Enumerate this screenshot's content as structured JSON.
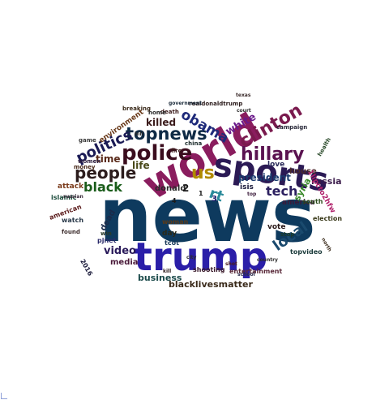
{
  "words": [
    {
      "text": "news",
      "color": "#0e3a5e"
    },
    {
      "text": "trump",
      "color": "#2a1ea8"
    },
    {
      "text": "world",
      "color": "#8a1d5e"
    },
    {
      "text": "sports",
      "color": "#2b1a55"
    },
    {
      "text": "police",
      "color": "#3b0d1e"
    },
    {
      "text": "topnews",
      "color": "#0e2a45"
    },
    {
      "text": "hillary",
      "color": "#5a1250"
    },
    {
      "text": "clinton",
      "color": "#7a1a4e"
    },
    {
      "text": "people",
      "color": "#2c1c1c"
    },
    {
      "text": "politics",
      "color": "#1a1a55"
    },
    {
      "text": "black",
      "color": "#1a5c1a"
    },
    {
      "text": "obama",
      "color": "#1e2a7a"
    },
    {
      "text": "tech",
      "color": "#2c2060"
    },
    {
      "text": "us",
      "color": "#b08a00"
    },
    {
      "text": "local",
      "color": "#1a4a6e"
    },
    {
      "text": "rt",
      "color": "#2a8a9a"
    },
    {
      "text": "killed",
      "color": "#3a1a1a"
    },
    {
      "text": "white",
      "color": "#6a1a8a"
    },
    {
      "text": "time",
      "color": "#5a2a1a"
    },
    {
      "text": "life",
      "color": "#4a4a1a"
    },
    {
      "text": "video",
      "color": "#2a1a5a"
    },
    {
      "text": "president",
      "color": "#1a3a6e"
    },
    {
      "text": "business",
      "color": "#1a4a4a"
    },
    {
      "text": "media",
      "color": "#4a1a3a"
    },
    {
      "text": "blacklivesmatter",
      "color": "#3a2a1a"
    },
    {
      "text": "donald",
      "color": "#2a2a2a"
    },
    {
      "text": "syria",
      "color": "#3a8a2a"
    },
    {
      "text": "love",
      "color": "#2a2a5a"
    },
    {
      "text": "russia",
      "color": "#3a1a4a"
    },
    {
      "text": "house",
      "color": "#4a2a2a"
    },
    {
      "text": "isis",
      "color": "#1a1a3a"
    },
    {
      "text": "vote",
      "color": "#2a1a1a"
    },
    {
      "text": "election",
      "color": "#3a3a1a"
    },
    {
      "text": "entertainment",
      "color": "#5a2a3a"
    },
    {
      "text": "topvideo",
      "color": "#1a3a3a"
    },
    {
      "text": "shooting",
      "color": "#3a1a2a"
    },
    {
      "text": "attack",
      "color": "#7a3a1a"
    },
    {
      "text": "dead",
      "color": "#1a2a4a"
    },
    {
      "text": "day",
      "color": "#2a2a1a"
    },
    {
      "text": "woman",
      "color": "#5a3a1a"
    },
    {
      "text": "tcot",
      "color": "#1a3a5a"
    },
    {
      "text": "america",
      "color": "#3a1a3a"
    },
    {
      "text": "south",
      "color": "#2a4a1a"
    },
    {
      "text": "2",
      "color": "#1a1a1a"
    },
    {
      "text": "3",
      "color": "#1a1a6a"
    },
    {
      "text": "1",
      "color": "#1a1a1a"
    },
    {
      "text": "4",
      "color": "#1a1a1a"
    },
    {
      "text": "watch",
      "color": "#2a3a4a"
    },
    {
      "text": "money",
      "color": "#4a2a1a"
    },
    {
      "text": "pjnet",
      "color": "#2a2a6a"
    },
    {
      "text": "found",
      "color": "#3a2a2a"
    },
    {
      "text": "american",
      "color": "#5a1a1a"
    },
    {
      "text": "islamic",
      "color": "#1a4a3a"
    },
    {
      "text": "game",
      "color": "#3a3a3a"
    },
    {
      "text": "women",
      "color": "#2a1a3a"
    },
    {
      "text": "china",
      "color": "#1a2a2a"
    },
    {
      "text": "death",
      "color": "#3a1a1a"
    },
    {
      "text": "home",
      "color": "#2a2a2a"
    },
    {
      "text": "fire",
      "color": "#3a1a1a"
    },
    {
      "text": "campaign",
      "color": "#2a2a3a"
    },
    {
      "text": "realdonaldtrump",
      "color": "#2a1a1a"
    },
    {
      "text": "government",
      "color": "#1a2a3a"
    },
    {
      "text": "breaking",
      "color": "#3a2a1a"
    },
    {
      "text": "health",
      "color": "#2a4a2a"
    },
    {
      "text": "court",
      "color": "#2a2a2a"
    },
    {
      "text": "texas",
      "color": "#3a2a2a"
    },
    {
      "text": "school",
      "color": "#2a2a4a"
    },
    {
      "text": "shot",
      "color": "#4a1a1a"
    },
    {
      "text": "city",
      "color": "#2a2a2a"
    },
    {
      "text": "stop",
      "color": "#1a3a2a"
    },
    {
      "text": "country",
      "color": "#2a2a2a"
    },
    {
      "text": "top",
      "color": "#3a1a3a"
    },
    {
      "text": "environment",
      "color": "#6a3a1a"
    },
    {
      "text": "russian",
      "color": "#3a2a3a"
    },
    {
      "text": "kill",
      "color": "#2a1a1a"
    },
    {
      "text": "bill",
      "color": "#2a2a2a"
    },
    {
      "text": "north",
      "color": "#3a2a1a"
    },
    {
      "text": "2016",
      "color": "#1a1a3a"
    },
    {
      "text": "win",
      "color": "#2a3a2a"
    },
    {
      "text": "1lipcto2hfw",
      "color": "#b0206a"
    }
  ]
}
